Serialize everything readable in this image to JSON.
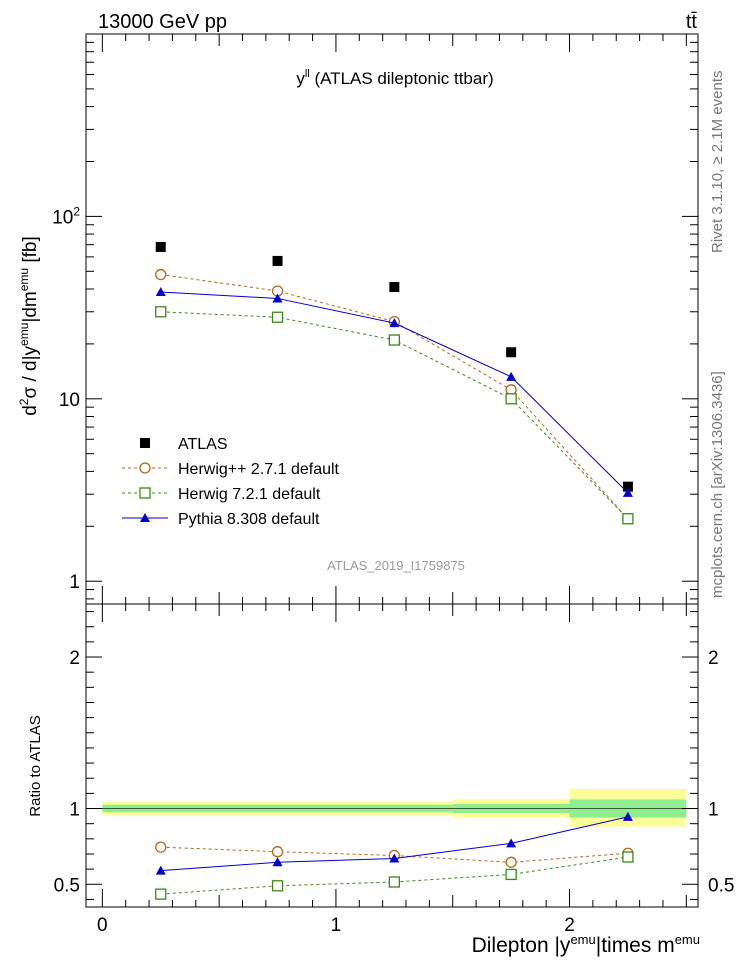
{
  "header": {
    "left": "13000 GeV pp",
    "right": "tt̄"
  },
  "plot_title": "y^ll (ATLAS dileptonic ttbar)",
  "watermark": "ATLAS_2019_I1759875",
  "side_text": {
    "rivet": "Rivet 3.1.10, ≥ 2.1M events",
    "mcplots": "mcplots.cern.ch [arXiv:1306.3436]"
  },
  "colors": {
    "atlas": "#000000",
    "herwig_pp": "#b5651d",
    "herwig7": "#3a8a1a",
    "pythia": "#0000cc",
    "band_inner": "#90ee90",
    "band_outer": "#ffff99"
  },
  "chart_data": [
    {
      "type": "scatter",
      "panel": "main",
      "ylabel": "d²σ / d|y^emu|dm^emu [fb]",
      "yscale": "log",
      "ylim": [
        0.75,
        1000
      ],
      "xlim": [
        -0.07,
        2.55
      ],
      "ytick_labels": [
        "1",
        "10",
        "10²"
      ],
      "x": [
        0.25,
        0.75,
        1.25,
        1.75,
        2.25
      ],
      "series": [
        {
          "name": "ATLAS",
          "key": "atlas",
          "values": [
            68,
            57,
            41,
            18,
            3.3
          ],
          "marker": "square"
        },
        {
          "name": "Herwig++ 2.7.1 default",
          "key": "herwig_pp",
          "values": [
            48,
            39,
            26.5,
            11.2,
            2.2
          ],
          "marker": "circle-open",
          "line": "dashed"
        },
        {
          "name": "Herwig 7.2.1 default",
          "key": "herwig7",
          "values": [
            30,
            28,
            21,
            10,
            2.2
          ],
          "marker": "square-open",
          "line": "dashed"
        },
        {
          "name": "Pythia 8.308 default",
          "key": "pythia",
          "values": [
            38.5,
            35.5,
            26,
            13.2,
            3.05
          ],
          "marker": "triangle",
          "line": "solid"
        }
      ],
      "legend_placement": "lower-left"
    },
    {
      "type": "line",
      "panel": "ratio",
      "ylabel": "Ratio to ATLAS",
      "xlabel": "Dilepton |y^emu|times m^emu",
      "ylim": [
        0.35,
        2.35
      ],
      "xlim": [
        -0.07,
        2.55
      ],
      "ytick_labels": [
        "0.5",
        "1",
        "2"
      ],
      "xtick_labels": [
        "0",
        "1",
        "2"
      ],
      "x": [
        0.25,
        0.75,
        1.25,
        1.75,
        2.25
      ],
      "bands": [
        {
          "x0": 0.0,
          "x1": 1.5,
          "inner": [
            0.975,
            1.025
          ],
          "outer": [
            0.955,
            1.045
          ]
        },
        {
          "x0": 1.5,
          "x1": 2.0,
          "inner": [
            0.97,
            1.03
          ],
          "outer": [
            0.94,
            1.06
          ]
        },
        {
          "x0": 2.0,
          "x1": 2.5,
          "inner": [
            0.94,
            1.06
          ],
          "outer": [
            0.88,
            1.13
          ]
        }
      ],
      "series": [
        {
          "name": "Herwig++ 2.7.1 default",
          "key": "herwig_pp",
          "values": [
            0.745,
            0.715,
            0.69,
            0.645,
            0.705
          ],
          "marker": "circle-open",
          "line": "dashed"
        },
        {
          "name": "Herwig 7.2.1 default",
          "key": "herwig7",
          "values": [
            0.435,
            0.49,
            0.515,
            0.565,
            0.68
          ],
          "marker": "square-open",
          "line": "dashed"
        },
        {
          "name": "Pythia 8.308 default",
          "key": "pythia",
          "values": [
            0.59,
            0.645,
            0.67,
            0.77,
            0.945
          ],
          "marker": "triangle",
          "line": "solid"
        }
      ]
    }
  ]
}
